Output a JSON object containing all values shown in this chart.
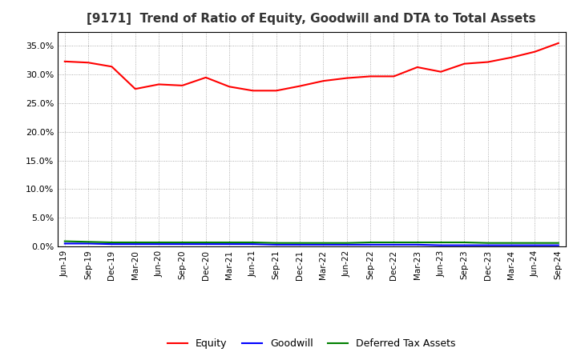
{
  "title": "[9171]  Trend of Ratio of Equity, Goodwill and DTA to Total Assets",
  "x_labels": [
    "Jun-19",
    "Sep-19",
    "Dec-19",
    "Mar-20",
    "Jun-20",
    "Sep-20",
    "Dec-20",
    "Mar-21",
    "Jun-21",
    "Sep-21",
    "Dec-21",
    "Mar-22",
    "Jun-22",
    "Sep-22",
    "Dec-22",
    "Mar-23",
    "Jun-23",
    "Sep-23",
    "Dec-23",
    "Mar-24",
    "Jun-24",
    "Sep-24"
  ],
  "equity": [
    0.323,
    0.321,
    0.314,
    0.275,
    0.283,
    0.281,
    0.295,
    0.279,
    0.272,
    0.272,
    0.28,
    0.289,
    0.294,
    0.297,
    0.297,
    0.313,
    0.305,
    0.319,
    0.322,
    0.33,
    0.34,
    0.355
  ],
  "goodwill": [
    0.005,
    0.005,
    0.004,
    0.004,
    0.004,
    0.004,
    0.004,
    0.004,
    0.004,
    0.003,
    0.003,
    0.003,
    0.003,
    0.003,
    0.003,
    0.003,
    0.002,
    0.002,
    0.002,
    0.002,
    0.002,
    0.002
  ],
  "dta": [
    0.009,
    0.008,
    0.007,
    0.007,
    0.007,
    0.007,
    0.007,
    0.007,
    0.007,
    0.006,
    0.006,
    0.006,
    0.006,
    0.007,
    0.007,
    0.007,
    0.007,
    0.007,
    0.006,
    0.006,
    0.006,
    0.006
  ],
  "equity_color": "#FF0000",
  "goodwill_color": "#0000FF",
  "dta_color": "#008000",
  "ylim": [
    0.0,
    0.375
  ],
  "yticks": [
    0.0,
    0.05,
    0.1,
    0.15,
    0.2,
    0.25,
    0.3,
    0.35
  ],
  "background_color": "#FFFFFF",
  "plot_bg_color": "#FFFFFF",
  "grid_color": "#999999",
  "title_fontsize": 11,
  "legend_labels": [
    "Equity",
    "Goodwill",
    "Deferred Tax Assets"
  ]
}
